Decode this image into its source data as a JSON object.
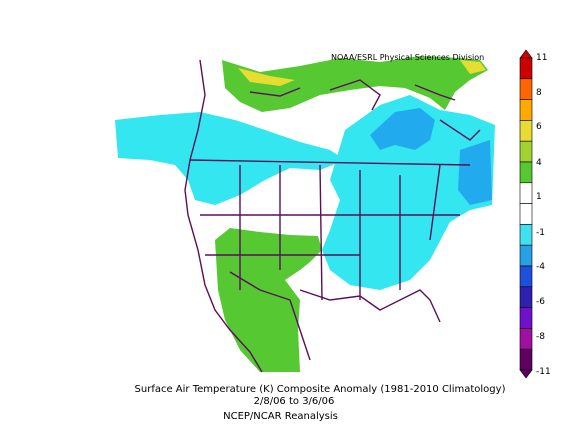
{
  "header": {
    "agency": "NOAA/ESRL Physical Sciences Division"
  },
  "caption": {
    "line1": "Surface Air Temperature (K) Composite Anomaly (1981-2010 Climatology)",
    "line2": "2/8/06  to 3/6/06",
    "line3": "NCEP/NCAR Reanalysis"
  },
  "colorbar": {
    "labels": [
      "11",
      "8",
      "6",
      "4",
      "1",
      "-1",
      "-4",
      "-6",
      "-8",
      "-11"
    ],
    "colors": [
      "#cc0000",
      "#ff6600",
      "#ffaa00",
      "#e6dc32",
      "#a0d232",
      "#55c832",
      "#ffffff",
      "#ffffff",
      "#40e0f0",
      "#28a0e8",
      "#1e50dc",
      "#3020b0",
      "#7010c8",
      "#a010a0",
      "#600060"
    ]
  },
  "legend": {
    "anomaly_colors": {
      "warm_green": "#66cc33",
      "cool_cyan": "#33e6f0",
      "cool_blue": "#22aaee",
      "neutral": "#ffffff"
    }
  }
}
